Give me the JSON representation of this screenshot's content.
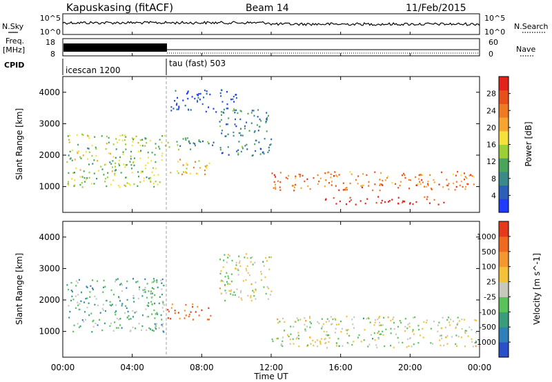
{
  "header": {
    "station": "Kapuskasing (fitACF)",
    "beam": "Beam 14",
    "date": "11/Feb/2015"
  },
  "noise_panel": {
    "left_label": "N.Sky",
    "right_label": "N.Search",
    "yticks_left": [
      "10^5",
      "10^0"
    ],
    "yticks_right": [
      "10^5",
      "10^0"
    ]
  },
  "freq_panel": {
    "left_label_1": "Freq.",
    "left_label_2": "[MHz]",
    "yticks_left": [
      "18",
      "8"
    ],
    "yticks_right": [
      "60",
      "0"
    ],
    "right_label": "Nave"
  },
  "cpid_panel": {
    "label": "CPID",
    "segments": [
      {
        "name": "icescan 1200",
        "start_hour": 0,
        "end_hour": 6
      },
      {
        "name": "tau (fast) 503",
        "start_hour": 6,
        "end_hour": 24
      }
    ]
  },
  "time_axis": {
    "xlabel": "Time UT",
    "ticks": [
      "00:00",
      "04:00",
      "08:00",
      "12:00",
      "16:00",
      "20:00",
      "00:00"
    ],
    "tick_hours": [
      0,
      4,
      8,
      12,
      16,
      20,
      24
    ]
  },
  "chart_data": [
    {
      "type": "heatmap",
      "title": "",
      "xlabel": "Time UT",
      "ylabel": "Slant Range [km]",
      "xlim_hours": [
        0,
        24
      ],
      "ylim_km": [
        180,
        4500
      ],
      "yticks": [
        1000,
        2000,
        3000,
        4000
      ],
      "colorbar": {
        "label": "Power [dB]",
        "ticks": [
          4,
          8,
          12,
          16,
          20,
          24,
          28
        ],
        "colors": [
          "#1f3bff",
          "#2b5fb8",
          "#3a8a8a",
          "#4aa55a",
          "#9ccf38",
          "#f5e13a",
          "#f6a531",
          "#f07a22",
          "#e8501a",
          "#e3221a"
        ]
      },
      "regions": [
        {
          "t0": 0.2,
          "t1": 5.9,
          "r0": 1000,
          "r1": 2700,
          "level": 0.45
        },
        {
          "t0": 6.0,
          "t1": 8.8,
          "r0": 2200,
          "r1": 2600,
          "level": 0.3
        },
        {
          "t0": 6.0,
          "t1": 8.5,
          "r0": 1400,
          "r1": 1900,
          "level": 0.6
        },
        {
          "t0": 9.0,
          "t1": 12.0,
          "r0": 2000,
          "r1": 3500,
          "level": 0.25
        },
        {
          "t0": 12.0,
          "t1": 23.8,
          "r0": 900,
          "r1": 1500,
          "level": 0.75
        },
        {
          "t0": 15.0,
          "t1": 22.0,
          "r0": 450,
          "r1": 700,
          "level": 0.95
        },
        {
          "t0": 6.2,
          "t1": 10.0,
          "r0": 3400,
          "r1": 4100,
          "level": 0.1
        }
      ]
    },
    {
      "type": "heatmap",
      "title": "",
      "xlabel": "Time UT",
      "ylabel": "Slant Range [km]",
      "xlim_hours": [
        0,
        24
      ],
      "ylim_km": [
        180,
        4500
      ],
      "yticks": [
        1000,
        2000,
        3000,
        4000
      ],
      "colorbar": {
        "label": "Velocity [m s^-1]",
        "ticks": [
          1000,
          500,
          100,
          25,
          -25,
          -100,
          -500,
          -1000
        ],
        "colors": [
          "#2a4fc8",
          "#2f7fb8",
          "#3a9c7a",
          "#59c25a",
          "#c8c8bf",
          "#f3c23a",
          "#f3972e",
          "#ef6a20",
          "#e43a1a"
        ]
      },
      "regions": [
        {
          "t0": 0.2,
          "t1": 5.9,
          "r0": 1000,
          "r1": 2700,
          "level": 0.35
        },
        {
          "t0": 6.0,
          "t1": 8.5,
          "r0": 1400,
          "r1": 1900,
          "level": 0.85
        },
        {
          "t0": 12.0,
          "t1": 23.8,
          "r0": 500,
          "r1": 1500,
          "level": 0.5
        },
        {
          "t0": 9.0,
          "t1": 12.0,
          "r0": 2000,
          "r1": 3500,
          "level": 0.5
        }
      ]
    }
  ]
}
